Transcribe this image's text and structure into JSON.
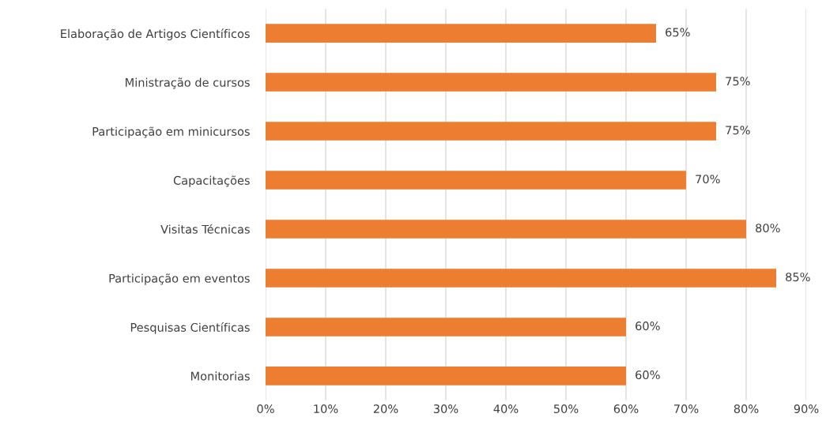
{
  "chart_data": {
    "type": "bar",
    "orientation": "horizontal",
    "categories": [
      "Elaboração de Artigos Científicos",
      "Ministração de cursos",
      "Participação em minicursos",
      "Capacitações",
      "Visitas Técnicas",
      "Participação em eventos",
      "Pesquisas Científicas",
      "Monitorias"
    ],
    "values": [
      65,
      75,
      75,
      70,
      80,
      85,
      60,
      60
    ],
    "value_labels": [
      "65%",
      "75%",
      "75%",
      "70%",
      "80%",
      "85%",
      "60%",
      "60%"
    ],
    "color": "#ed7d31",
    "xlim": [
      0,
      90
    ],
    "xticks": [
      {
        "value": 0,
        "label": "0%"
      },
      {
        "value": 10,
        "label": "10%"
      },
      {
        "value": 20,
        "label": "20%"
      },
      {
        "value": 30,
        "label": "30%"
      },
      {
        "value": 40,
        "label": "40%"
      },
      {
        "value": 50,
        "label": "50%"
      },
      {
        "value": 60,
        "label": "60%"
      },
      {
        "value": 70,
        "label": "70%"
      },
      {
        "value": 80,
        "label": "80%"
      },
      {
        "value": 90,
        "label": "90%"
      }
    ],
    "grid": "x",
    "legend": false
  }
}
